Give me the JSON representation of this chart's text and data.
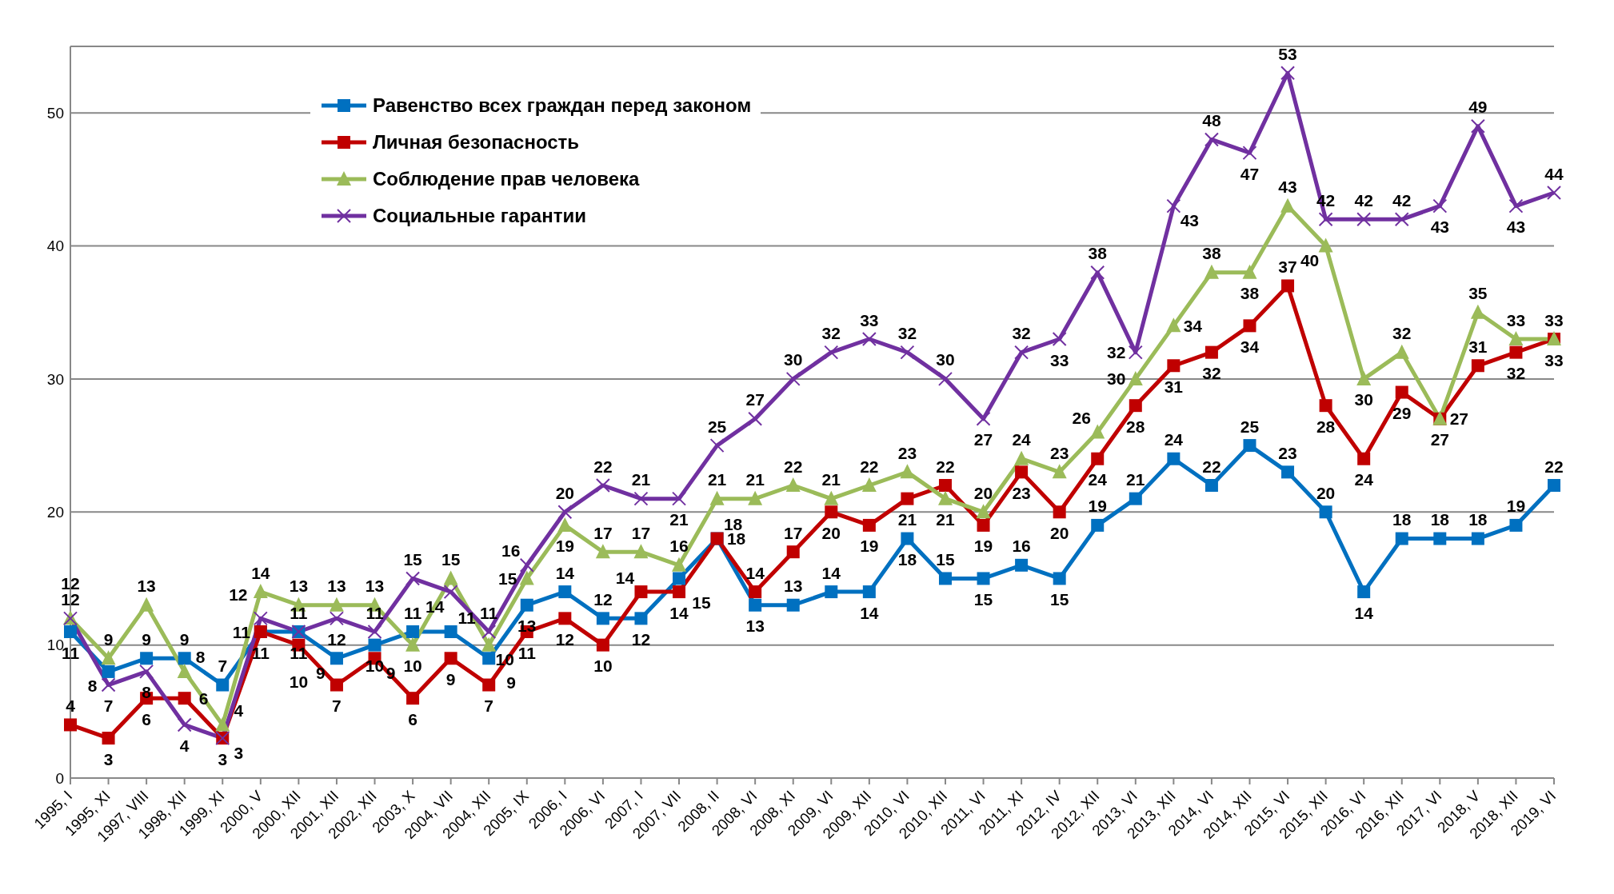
{
  "chart_data": {
    "type": "line",
    "categories": [
      "1995, I",
      "1995, XI",
      "1997, VIII",
      "1998, XII",
      "1999, XI",
      "2000, V",
      "2000, XII",
      "2001, XII",
      "2002, XII",
      "2003, X",
      "2004, VII",
      "2004, XII",
      "2005, IX",
      "2006, I",
      "2006, VI",
      "2007, I",
      "2007, VII",
      "2008, II",
      "2008, VI",
      "2008, XI",
      "2009, VI",
      "2009, XII",
      "2010, VI",
      "2010, XII",
      "2011, VI",
      "2011, XI",
      "2012, IV",
      "2012, XII",
      "2013, VI",
      "2013, XII",
      "2014, VI",
      "2014, XII",
      "2015, VI",
      "2015, XII",
      "2016, VI",
      "2016, XII",
      "2017, VI",
      "2018, V",
      "2018, XII",
      "2019, VI"
    ],
    "series": [
      {
        "name": "Равенство всех граждан перед законом",
        "color": "#0070c0",
        "marker": "square",
        "values": [
          11,
          8,
          9,
          9,
          7,
          11,
          11,
          9,
          10,
          11,
          11,
          9,
          13,
          14,
          12,
          12,
          15,
          18,
          13,
          13,
          14,
          14,
          18,
          15,
          15,
          16,
          15,
          19,
          21,
          24,
          22,
          25,
          23,
          20,
          14,
          18,
          18,
          18,
          19,
          22
        ]
      },
      {
        "name": "Личная безопасность",
        "color": "#c00000",
        "marker": "square",
        "values": [
          4,
          3,
          6,
          6,
          3,
          11,
          10,
          7,
          9,
          6,
          9,
          7,
          11,
          12,
          10,
          14,
          14,
          18,
          14,
          17,
          20,
          19,
          21,
          22,
          19,
          23,
          20,
          24,
          28,
          31,
          32,
          34,
          37,
          28,
          24,
          29,
          27,
          31,
          32,
          33
        ]
      },
      {
        "name": "Соблюдение прав человека",
        "color": "#9bbb59",
        "marker": "triangle",
        "values": [
          12,
          9,
          13,
          8,
          4,
          14,
          13,
          13,
          13,
          10,
          15,
          10,
          15,
          19,
          17,
          17,
          16,
          21,
          21,
          22,
          21,
          22,
          23,
          21,
          20,
          24,
          23,
          26,
          30,
          34,
          38,
          38,
          43,
          40,
          30,
          32,
          27,
          35,
          33,
          33
        ]
      },
      {
        "name": "Социальные гарантии",
        "color": "#7030a0",
        "marker": "cross",
        "values": [
          12,
          7,
          8,
          4,
          3,
          12,
          11,
          12,
          11,
          15,
          14,
          11,
          16,
          20,
          22,
          21,
          21,
          25,
          27,
          30,
          32,
          33,
          32,
          30,
          27,
          32,
          33,
          38,
          32,
          43,
          48,
          47,
          53,
          42,
          42,
          42,
          43,
          49,
          43,
          44
        ]
      }
    ],
    "ylim": [
      0,
      55
    ],
    "yticks": [
      0,
      10,
      20,
      30,
      40,
      50
    ],
    "grid": "y",
    "legend": "top left",
    "data_labels": true
  }
}
